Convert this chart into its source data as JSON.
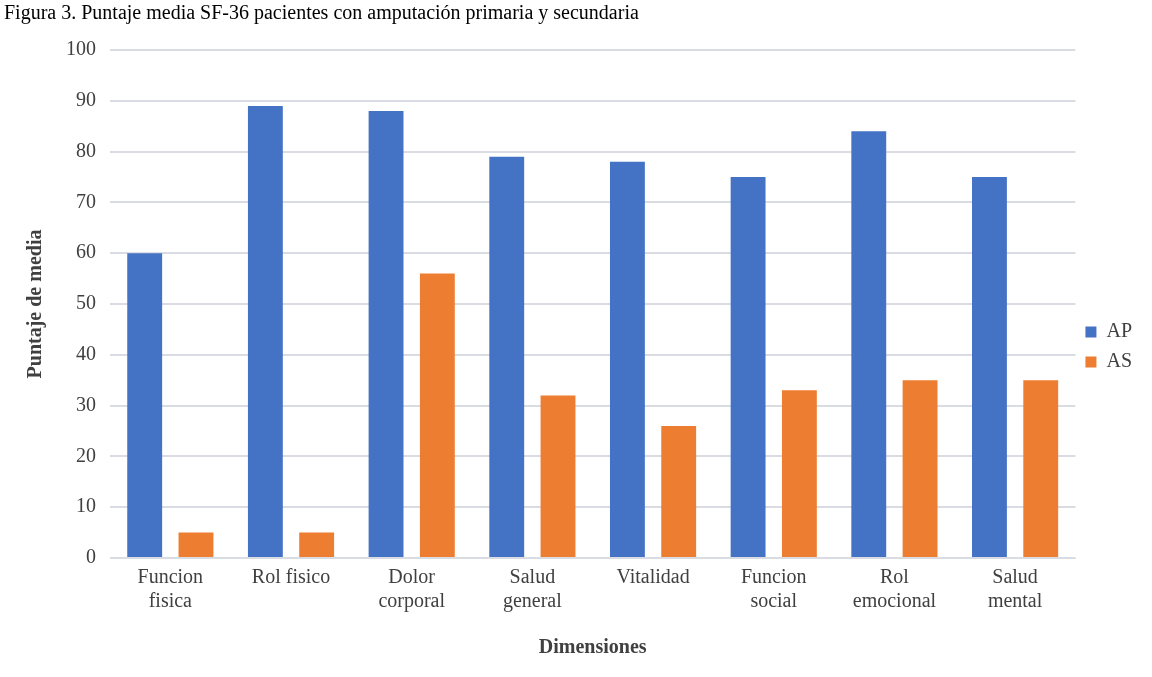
{
  "chart_data": {
    "type": "bar",
    "title": "Figura 3. Puntaje media SF-36 pacientes con amputación primaria y secundaria",
    "xlabel": "Dimensiones",
    "ylabel": "Puntaje de media",
    "categories": [
      "Funcion fisica",
      "Rol fisico",
      "Dolor corporal",
      "Salud general",
      "Vitalidad",
      "Funcion social",
      "Rol emocional",
      "Salud mental"
    ],
    "series": [
      {
        "name": "AP",
        "color": "#4472c4",
        "values": [
          60,
          89,
          88,
          79,
          78,
          75,
          84,
          75
        ]
      },
      {
        "name": "AS",
        "color": "#ed7d31",
        "values": [
          5,
          5,
          56,
          32,
          26,
          33,
          35,
          35
        ]
      }
    ],
    "ylim": [
      0,
      100
    ],
    "yticks": [
      0,
      10,
      20,
      30,
      40,
      50,
      60,
      70,
      80,
      90,
      100
    ],
    "grid": "y",
    "legend": "right"
  }
}
